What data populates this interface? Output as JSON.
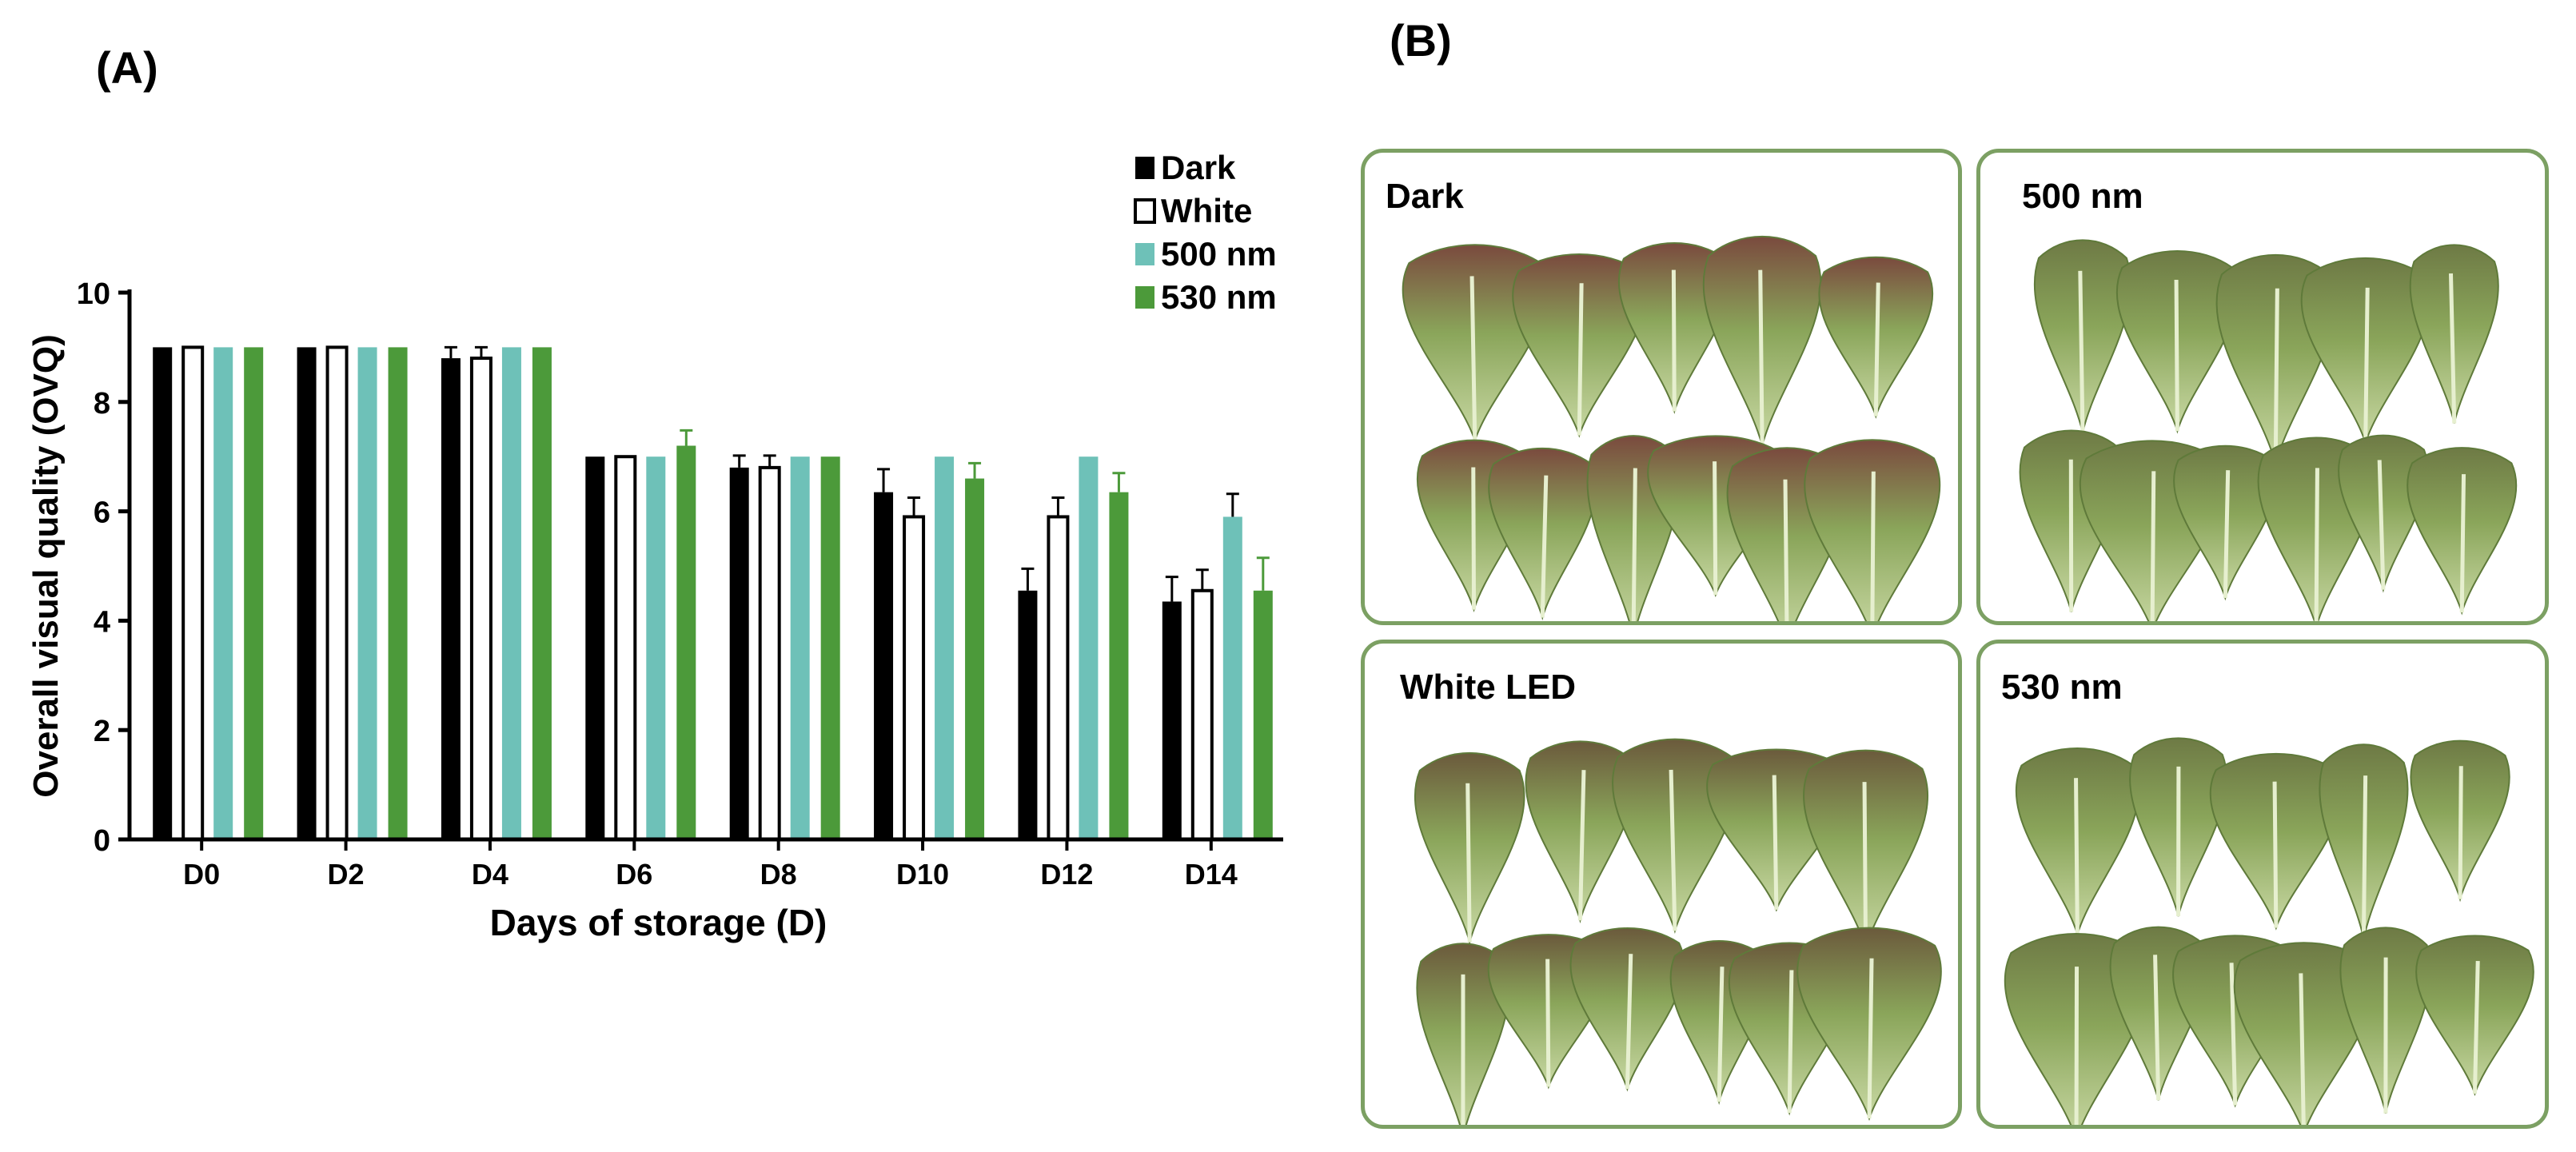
{
  "panel_a_label": "(A)",
  "panel_b_label": "(B)",
  "chart_data": {
    "type": "bar",
    "xlabel": "Days of storage (D)",
    "ylabel": "Overall visual quality (OVQ)",
    "ylim": [
      0,
      10
    ],
    "yticks": [
      0,
      2,
      4,
      6,
      8,
      10
    ],
    "categories": [
      "D0",
      "D2",
      "D4",
      "D6",
      "D8",
      "D10",
      "D12",
      "D14"
    ],
    "legend_position": "top-right",
    "series": [
      {
        "name": "Dark",
        "color": "#000000",
        "fill": "solid",
        "values": [
          9.0,
          9.0,
          8.8,
          7.0,
          6.8,
          6.35,
          4.55,
          4.35
        ],
        "errors": [
          0,
          0,
          0.2,
          0,
          0.22,
          0.42,
          0.4,
          0.45
        ]
      },
      {
        "name": "White",
        "color": "#ffffff",
        "fill": "outline",
        "values": [
          9.0,
          9.0,
          8.8,
          7.0,
          6.8,
          5.9,
          5.9,
          4.55
        ],
        "errors": [
          0,
          0,
          0.2,
          0,
          0.22,
          0.35,
          0.35,
          0.38
        ]
      },
      {
        "name": "500 nm",
        "color": "#6ec1b8",
        "fill": "solid",
        "values": [
          9.0,
          9.0,
          9.0,
          7.0,
          7.0,
          7.0,
          7.0,
          5.9
        ],
        "errors": [
          0,
          0,
          0,
          0,
          0,
          0,
          0,
          0.42
        ]
      },
      {
        "name": "530 nm",
        "color": "#4c9a3a",
        "fill": "solid",
        "values": [
          9.0,
          9.0,
          9.0,
          7.2,
          7.0,
          6.6,
          6.35,
          4.55
        ],
        "errors": [
          0,
          0,
          0,
          0.28,
          0,
          0.28,
          0.35,
          0.6
        ]
      }
    ]
  },
  "photos": [
    {
      "label": "Dark"
    },
    {
      "label": "500 nm"
    },
    {
      "label": "White LED"
    },
    {
      "label": "530 nm"
    }
  ]
}
